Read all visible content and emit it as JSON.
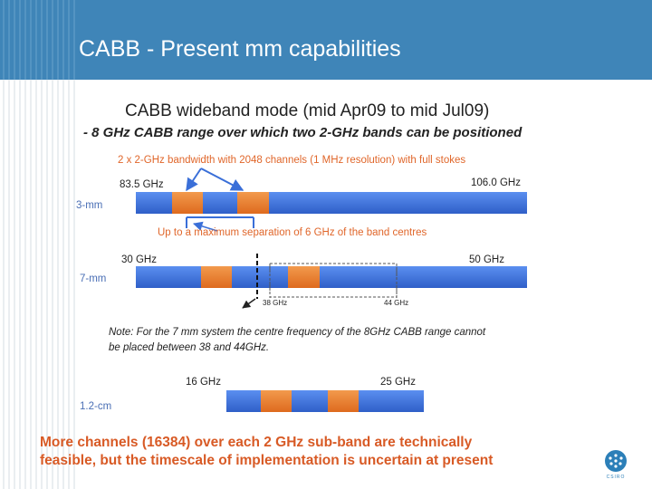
{
  "title": "CABB - Present mm capabilities",
  "figure": {
    "heading": "CABB wideband mode (mid Apr09 to mid Jul09)",
    "subheading": "- 8 GHz CABB range over which two 2-GHz bands can be positioned",
    "bandwidth_note": "2 x 2-GHz bandwidth with 2048 channels (1 MHz resolution) with full stokes",
    "separation_note": "Up to a maximum separation of 6 GHz of the band centres",
    "note_line1": "Note: For the 7 mm system the centre frequency of the 8GHz CABB range cannot",
    "note_line2": "be placed between 38 and 44GHz.",
    "bands": {
      "three_mm": {
        "label": "3-mm",
        "low": "83.5 GHz",
        "high": "106.0 GHz"
      },
      "seven_mm": {
        "label": "7-mm",
        "low": "30 GHz",
        "high": "50 GHz",
        "gap_low": "38 GHz",
        "gap_high": "44 GHz"
      },
      "twelve_cm": {
        "label": "1.2-cm",
        "low": "16 GHz",
        "high": "25 GHz"
      }
    },
    "colors": {
      "band": "#3a6fd8",
      "subband": "#e8772a",
      "label": "#4a6fb5",
      "note": "#e0662a"
    }
  },
  "footnote_line1": "More channels (16384) over each 2 GHz sub-band are technically",
  "footnote_line2": "feasible, but the timescale of implementation is uncertain at present",
  "logo_text": "CSIRO"
}
